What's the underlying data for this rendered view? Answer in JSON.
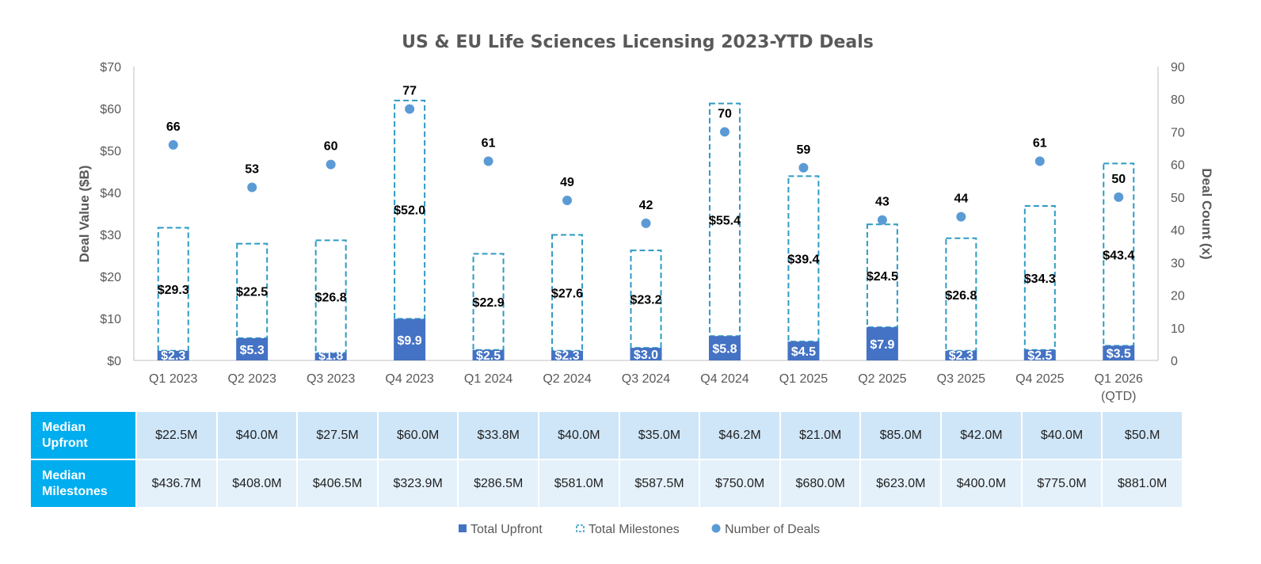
{
  "chart_data": {
    "type": "bar",
    "title": "US & EU Life Sciences Licensing 2023-YTD Deals",
    "categories": [
      "Q1 2023",
      "Q2 2023",
      "Q3 2023",
      "Q4 2023",
      "Q1 2024",
      "Q2 2024",
      "Q3 2024",
      "Q4 2024",
      "Q1 2025",
      "Q2 2025",
      "Q3 2025",
      "Q4 2025",
      "Q1 2026 (QTD)"
    ],
    "category_lines": [
      [
        "Q1 2023"
      ],
      [
        "Q2 2023"
      ],
      [
        "Q3 2023"
      ],
      [
        "Q4 2023"
      ],
      [
        "Q1 2024"
      ],
      [
        "Q2 2024"
      ],
      [
        "Q3 2024"
      ],
      [
        "Q4 2024"
      ],
      [
        "Q1 2025"
      ],
      [
        "Q2 2025"
      ],
      [
        "Q3 2025"
      ],
      [
        "Q4 2025"
      ],
      [
        "Q1 2026",
        "(QTD)"
      ]
    ],
    "ylabel": "Deal Value ($B)",
    "ylabel_right": "Deal Count (x)",
    "ylim": [
      0,
      70
    ],
    "yticks": [
      0,
      10,
      20,
      30,
      40,
      50,
      60,
      70
    ],
    "ytick_labels": [
      "$0",
      "$10",
      "$20",
      "$30",
      "$40",
      "$50",
      "$60",
      "$70"
    ],
    "ylim_right": [
      0,
      90
    ],
    "yticks_right": [
      0,
      10,
      20,
      30,
      40,
      50,
      60,
      70,
      80,
      90
    ],
    "ytick_labels_right": [
      "0",
      "10",
      "20",
      "30",
      "40",
      "50",
      "60",
      "70",
      "80",
      "90"
    ],
    "series": [
      {
        "name": "Total Upfront",
        "type": "stacked-bar",
        "values": [
          2.3,
          5.3,
          1.8,
          9.9,
          2.5,
          2.3,
          3.0,
          5.8,
          4.5,
          7.9,
          2.3,
          2.5,
          3.5
        ],
        "labels": [
          "$2.3",
          "$5.3",
          "$1.8",
          "$9.9",
          "$2.5",
          "$2.3",
          "$3.0",
          "$5.8",
          "$4.5",
          "$7.9",
          "$2.3",
          "$2.5",
          "$3.5"
        ]
      },
      {
        "name": "Total Milestones",
        "type": "stacked-bar",
        "values": [
          29.3,
          22.5,
          26.8,
          52.0,
          22.9,
          27.6,
          23.2,
          55.4,
          39.4,
          24.5,
          26.8,
          34.3,
          43.4
        ],
        "labels": [
          "$29.3",
          "$22.5",
          "$26.8",
          "$52.0",
          "$22.9",
          "$27.6",
          "$23.2",
          "$55.4",
          "$39.4",
          "$24.5",
          "$26.8",
          "$34.3",
          "$43.4"
        ]
      },
      {
        "name": "Number of Deals",
        "type": "scatter",
        "axis": "right",
        "values": [
          66,
          53,
          60,
          77,
          61,
          49,
          42,
          70,
          59,
          43,
          44,
          61,
          50
        ],
        "labels": [
          "66",
          "53",
          "60",
          "77",
          "61",
          "49",
          "42",
          "70",
          "59",
          "43",
          "44",
          "61",
          "50"
        ]
      }
    ],
    "legend_position": "bottom",
    "grid": false,
    "colors": {
      "upfront": "#4472c4",
      "milestones": "#2e9ac4",
      "deals": "#5b9bd5",
      "axis": "#bfbfbf",
      "text": "#595959"
    }
  },
  "table": {
    "rows": [
      {
        "header": [
          "Median",
          "Upfront"
        ],
        "values": [
          "$22.5M",
          "$40.0M",
          "$27.5M",
          "$60.0M",
          "$33.8M",
          "$40.0M",
          "$35.0M",
          "$46.2M",
          "$21.0M",
          "$85.0M",
          "$42.0M",
          "$40.0M",
          "$50.M"
        ]
      },
      {
        "header": [
          "Median",
          "Milestones"
        ],
        "values": [
          "$436.7M",
          "$408.0M",
          "$406.5M",
          "$323.9M",
          "$286.5M",
          "$581.0M",
          "$587.5M",
          "$750.0M",
          "$680.0M",
          "$623.0M",
          "$400.0M",
          "$775.0M",
          "$881.0M"
        ]
      }
    ]
  }
}
